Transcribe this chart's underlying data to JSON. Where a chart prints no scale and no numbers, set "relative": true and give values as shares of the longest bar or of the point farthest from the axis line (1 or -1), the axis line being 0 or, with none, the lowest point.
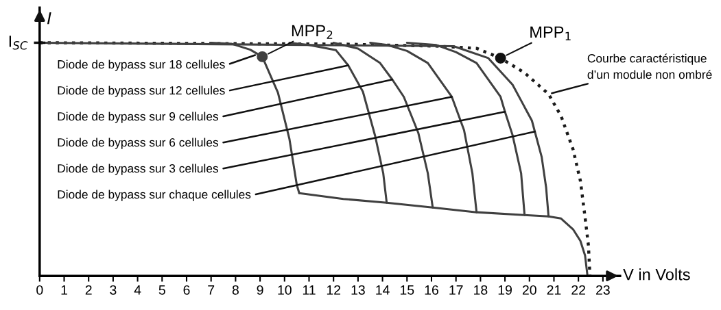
{
  "chart_data": {
    "type": "line",
    "relative": true,
    "xlabel": "V in Volts",
    "ylabel": "I",
    "xlim": [
      0,
      23.7
    ],
    "xticks": [
      0,
      1,
      2,
      3,
      4,
      5,
      6,
      7,
      8,
      9,
      10,
      11,
      12,
      13,
      14,
      15,
      16,
      17,
      18,
      19,
      20,
      21,
      22,
      23
    ],
    "grid": false,
    "series": [
      {
        "type": "line",
        "color": "#1a1a1a",
        "line_style": "dotted",
        "x": [
          0,
          12.4,
          16.35,
          17.84,
          18.82,
          19.8,
          20.78,
          21.29,
          21.78,
          22.08,
          22.27,
          22.41,
          22.47
        ],
        "values": [
          1,
          0.994,
          0.985,
          0.976,
          0.934,
          0.871,
          0.78,
          0.686,
          0.543,
          0.408,
          0.252,
          0.129,
          0
        ]
      },
      {
        "type": "line",
        "color": "#404040",
        "line_style": "solid",
        "x": [
          7.0,
          7.85,
          8.6,
          9.09,
          9.73,
          10.2,
          10.5,
          10.6
        ],
        "values": [
          1,
          0.995,
          0.97,
          0.94,
          0.786,
          0.587,
          0.39,
          0.355
        ]
      },
      {
        "type": "line",
        "color": "#404040",
        "line_style": "solid",
        "x": [
          10.2,
          11.0,
          12.1,
          12.6,
          13.2,
          13.7,
          14.03,
          14.17
        ],
        "values": [
          1,
          0.99,
          0.968,
          0.903,
          0.79,
          0.6,
          0.44,
          0.314
        ]
      },
      {
        "type": "line",
        "color": "#404040",
        "line_style": "solid",
        "x": [
          12.0,
          13.0,
          13.9,
          14.4,
          14.87,
          15.46,
          15.85,
          16.05
        ],
        "values": [
          1,
          0.975,
          0.913,
          0.842,
          0.768,
          0.614,
          0.44,
          0.293
        ]
      },
      {
        "type": "line",
        "color": "#404040",
        "line_style": "solid",
        "x": [
          13.5,
          14.2,
          15.0,
          15.85,
          16.83,
          17.33,
          17.67,
          17.84
        ],
        "values": [
          1,
          0.99,
          0.965,
          0.913,
          0.768,
          0.625,
          0.44,
          0.273
        ]
      },
      {
        "type": "line",
        "color": "#404040",
        "line_style": "solid",
        "x": [
          15.0,
          16.2,
          17.0,
          17.84,
          18.82,
          19.0,
          19.31,
          19.66,
          19.8
        ],
        "values": [
          1,
          0.99,
          0.96,
          0.913,
          0.768,
          0.704,
          0.604,
          0.44,
          0.261
        ]
      },
      {
        "type": "line",
        "color": "#404040",
        "line_style": "solid",
        "x": [
          0,
          16.9,
          18.32,
          19.31,
          20.1,
          20.22,
          20.5,
          20.68,
          20.78
        ],
        "values": [
          1,
          0.985,
          0.934,
          0.82,
          0.666,
          0.619,
          0.51,
          0.38,
          0.255
        ]
      },
      {
        "type": "line",
        "color": "#404040",
        "line_style": "solid",
        "x": [
          10.6,
          12.4,
          14.17,
          16.05,
          17.84,
          19.8,
          20.78,
          21.29,
          21.78,
          22.08,
          22.27,
          22.37
        ],
        "values": [
          0.355,
          0.33,
          0.314,
          0.293,
          0.273,
          0.261,
          0.255,
          0.246,
          0.2,
          0.15,
          0.088,
          0
        ]
      },
      {
        "type": "scatter",
        "name": "MPP$_{2}$",
        "color": "#404040",
        "marker": "circle",
        "x": [
          9.09
        ],
        "values": [
          0.94
        ]
      },
      {
        "type": "scatter",
        "name": "MPP$_{1}$",
        "color": "#111111",
        "marker": "circle",
        "x": [
          18.82
        ],
        "values": [
          0.934
        ]
      }
    ],
    "annotations": [
      {
        "text": "I$_{SC}$",
        "x": 0,
        "y": 1
      },
      {
        "text": "Diode de bypass sur 18 cellules",
        "x": 8.8,
        "y": 0.947
      },
      {
        "text": "Diode de bypass sur 12 cellules",
        "x": 12.6,
        "y": 0.903
      },
      {
        "text": "Diode de bypass sur 9 cellules",
        "x": 14.4,
        "y": 0.842
      },
      {
        "text": "Diode de bypass sur 6 cellules",
        "x": 16.83,
        "y": 0.768
      },
      {
        "text": "Diode de bypass sur 3 cellules",
        "x": 19.0,
        "y": 0.704
      },
      {
        "text": "Diode de bypass sur chaque cellules",
        "x": 20.22,
        "y": 0.619
      },
      {
        "text": "Courbe caractéristique\nd’un module non ombré",
        "x": 20.8,
        "y": 0.78
      }
    ]
  }
}
